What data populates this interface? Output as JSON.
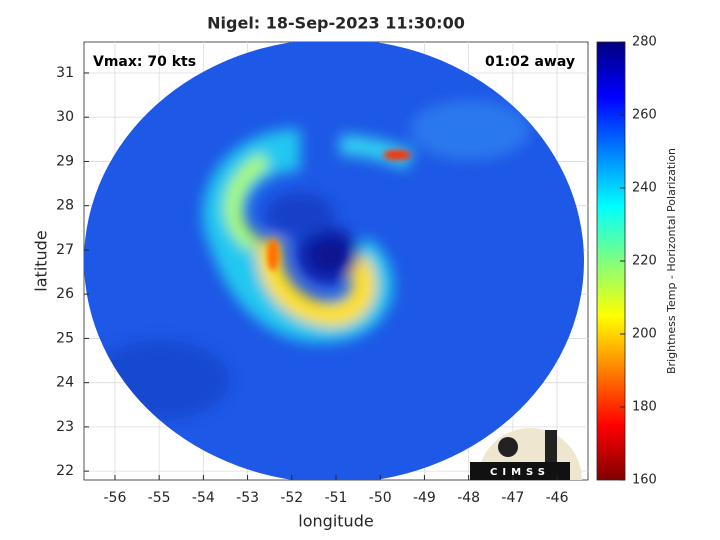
{
  "chart_data": {
    "type": "heatmap",
    "title": "Nigel: 18-Sep-2023 11:30:00",
    "x_label": "longitude",
    "y_label": "latitude",
    "xlim": [
      -56.7,
      -45.3
    ],
    "ylim": [
      21.8,
      31.7
    ],
    "xticks": [
      -56,
      -55,
      -54,
      -53,
      -52,
      -51,
      -50,
      -49,
      -48,
      -47,
      -46
    ],
    "yticks": [
      22,
      23,
      24,
      25,
      26,
      27,
      28,
      29,
      30,
      31
    ],
    "grid": true,
    "annotations": [
      "Vmax: 70 kts",
      "01:02 away"
    ],
    "colorbar": {
      "label": "Brightness Temp - Horizontal Polarization",
      "clim": [
        160,
        280
      ],
      "ticks": [
        160,
        180,
        200,
        220,
        240,
        260,
        280
      ],
      "colormap": "jet"
    },
    "logo_text": "CIMSS"
  }
}
